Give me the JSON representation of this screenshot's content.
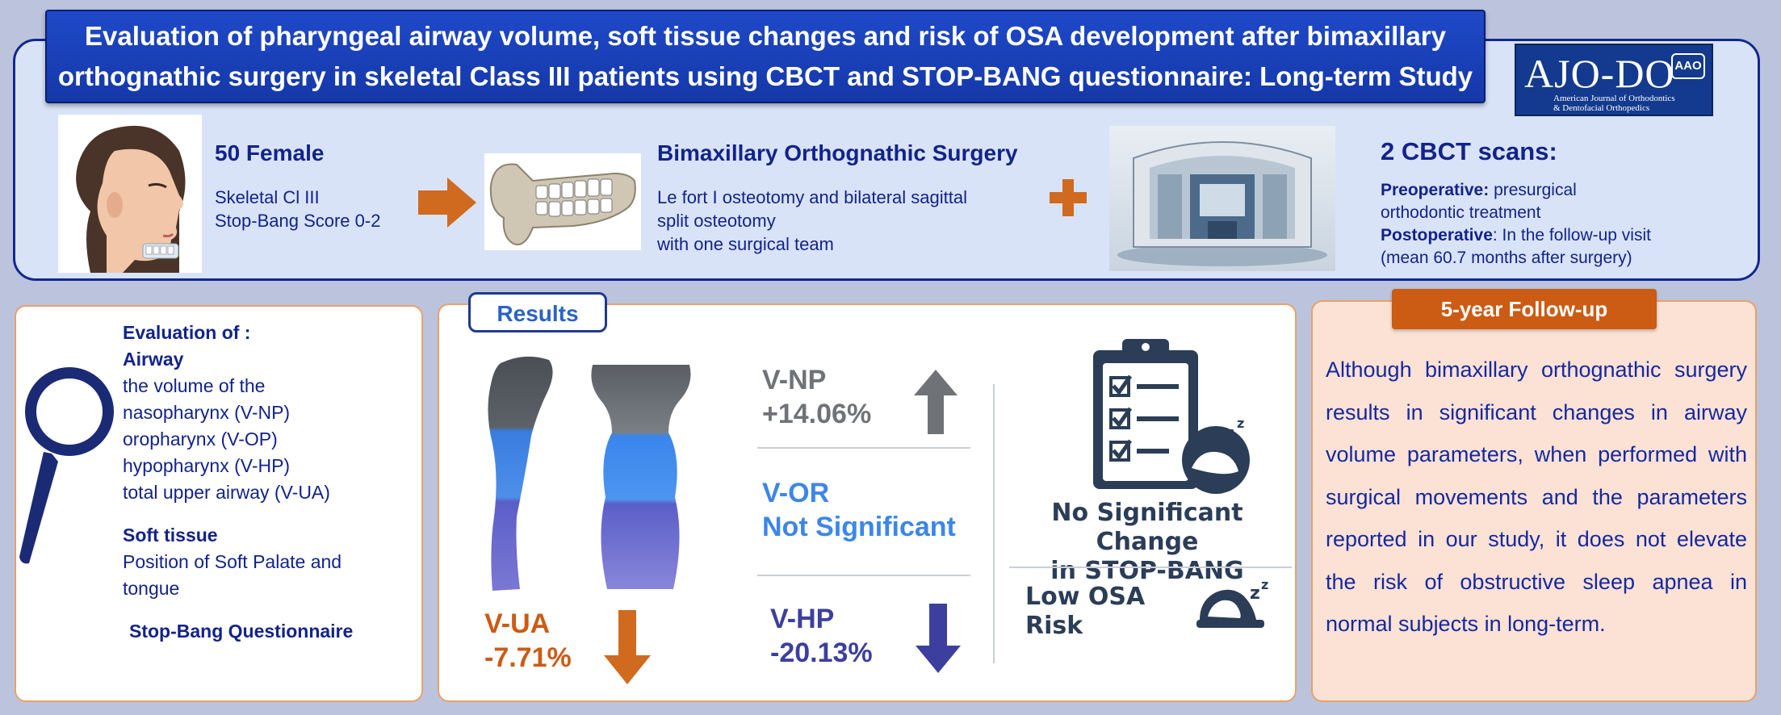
{
  "title": {
    "line1": "Evaluation of pharyngeal airway volume, soft tissue changes and risk of OSA development after bimaxillary",
    "line2": "orthognathic surgery in skeletal Class III patients using CBCT and STOP-BANG questionnaire: Long-term Study"
  },
  "journal": {
    "name": "AJO-DO",
    "badge": "AAO",
    "subtitle_line1": "American Journal of Orthodontics",
    "subtitle_line2": "& Dentofacial Orthopedics"
  },
  "patients": {
    "heading": "50 Female",
    "line1": "Skeletal Cl III",
    "line2": "Stop-Bang Score 0-2"
  },
  "surgery": {
    "heading": "Bimaxillary Orthognathic Surgery",
    "line1": "Le fort I osteotomy and bilateral sagittal",
    "line2": "split osteotomy",
    "line3": "with one surgical team"
  },
  "scans": {
    "heading": "2 CBCT scans:",
    "pre_label": "Preoperative:",
    "pre_text_1": " presurgical",
    "pre_text_2": "orthodontic treatment",
    "post_label": "Postoperative",
    "post_text_1": ": In the follow-up visit",
    "post_text_2": "(mean 60.7 months after surgery)"
  },
  "evaluation": {
    "heading": "Evaluation of :",
    "airway_heading": "Airway",
    "airway_items": [
      "the volume of the",
      "nasopharynx (V-NP)",
      "oropharynx (V-OP)",
      "hypopharynx (V-HP)",
      "total upper airway (V-UA)"
    ],
    "soft_heading": "Soft tissue",
    "soft_line1": "Position of Soft Palate and",
    "soft_line2": "tongue",
    "questionnaire": "Stop-Bang Questionnaire"
  },
  "results": {
    "tab": "Results",
    "vua_label": "V-UA",
    "vua_value": "-7.71%",
    "vnp_label": "V-NP",
    "vnp_value": "+14.06%",
    "vor_label": "V-OR",
    "vor_value": "Not Significant",
    "vhp_label": "V-HP",
    "vhp_value": "-20.13%",
    "stopbang_line1": "No Significant Change",
    "stopbang_line2": "in STOP-BANG",
    "osa_risk": "Low OSA Risk"
  },
  "followup": {
    "tab": "5-year Follow-up",
    "text": "Although bimaxillary orthognathic surgery results in significant changes in airway volume parameters, when performed with surgical movements and the parameters reported in our study, it does not elevate the risk of obstructive sleep apnea in normal subjects in long-term."
  },
  "colors": {
    "banner": "#1f49c9",
    "navy_text": "#12238a",
    "orange": "#cc5b14",
    "blue_result": "#3d86e8",
    "gray_result": "#6f7378",
    "purple_result": "#3d3f9e"
  }
}
